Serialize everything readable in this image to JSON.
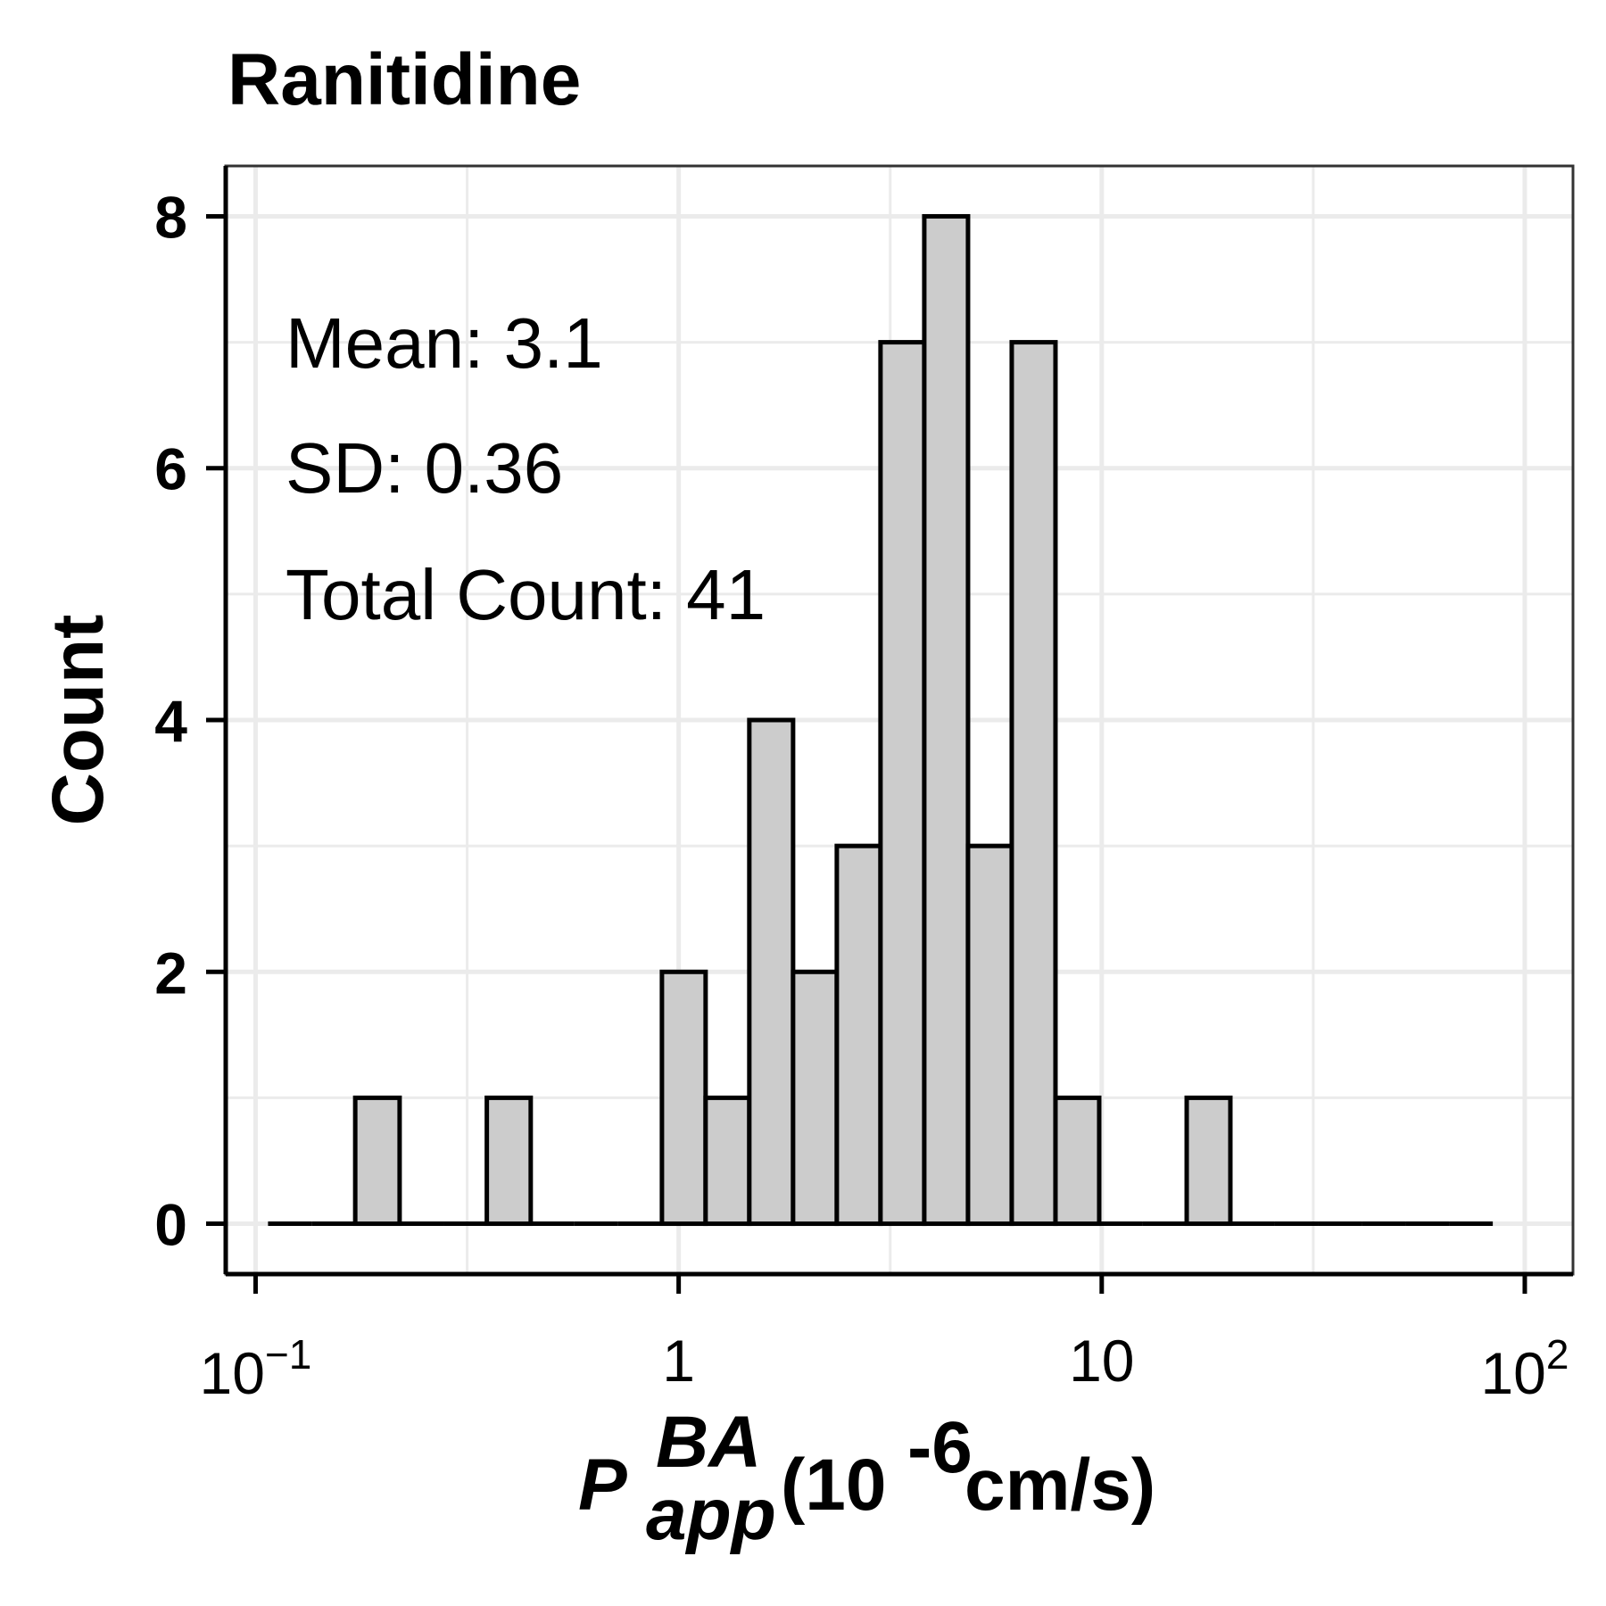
{
  "chart_data": {
    "type": "bar",
    "title": "Ranitidine",
    "xscale": "log10",
    "xlim": [
      0.085,
      130
    ],
    "ylim": [
      -0.4,
      8.4
    ],
    "grid": true,
    "bar_color": "#cccccc",
    "edge_color": "#000000",
    "x_ticks": [
      {
        "value": 0.1,
        "base": "10",
        "exp": "−1"
      },
      {
        "value": 1,
        "base": "1",
        "exp": ""
      },
      {
        "value": 10,
        "base": "10",
        "exp": ""
      },
      {
        "value": 100,
        "base": "10",
        "exp": "2"
      }
    ],
    "y_ticks": [
      0,
      2,
      4,
      6,
      8
    ],
    "xlabel": {
      "main": "P",
      "sup": "BA",
      "sub": "app",
      "unit_open": "(10",
      "unit_exp": "-6",
      "unit_close": " cm/s)"
    },
    "ylabel": "Count",
    "bins": [
      {
        "from": 0.107,
        "to": 0.136,
        "count": 0
      },
      {
        "from": 0.136,
        "to": 0.172,
        "count": 0
      },
      {
        "from": 0.172,
        "to": 0.219,
        "count": 1
      },
      {
        "from": 0.219,
        "to": 0.278,
        "count": 0
      },
      {
        "from": 0.278,
        "to": 0.352,
        "count": 0
      },
      {
        "from": 0.352,
        "to": 0.447,
        "count": 1
      },
      {
        "from": 0.447,
        "to": 0.567,
        "count": 0
      },
      {
        "from": 0.567,
        "to": 0.719,
        "count": 0
      },
      {
        "from": 0.719,
        "to": 0.913,
        "count": 0
      },
      {
        "from": 0.913,
        "to": 1.158,
        "count": 2
      },
      {
        "from": 1.158,
        "to": 1.469,
        "count": 1
      },
      {
        "from": 1.469,
        "to": 1.864,
        "count": 4
      },
      {
        "from": 1.864,
        "to": 2.365,
        "count": 2
      },
      {
        "from": 2.365,
        "to": 3.0,
        "count": 3
      },
      {
        "from": 3.0,
        "to": 3.807,
        "count": 7
      },
      {
        "from": 3.807,
        "to": 4.83,
        "count": 8
      },
      {
        "from": 4.83,
        "to": 6.128,
        "count": 3
      },
      {
        "from": 6.128,
        "to": 7.775,
        "count": 7
      },
      {
        "from": 7.775,
        "to": 9.864,
        "count": 1
      },
      {
        "from": 9.864,
        "to": 12.51,
        "count": 0
      },
      {
        "from": 12.51,
        "to": 15.88,
        "count": 0
      },
      {
        "from": 15.88,
        "to": 20.14,
        "count": 1
      },
      {
        "from": 20.14,
        "to": 25.56,
        "count": 0
      },
      {
        "from": 25.56,
        "to": 32.42,
        "count": 0
      },
      {
        "from": 32.42,
        "to": 41.14,
        "count": 0
      },
      {
        "from": 41.14,
        "to": 52.19,
        "count": 0
      },
      {
        "from": 52.19,
        "to": 66.22,
        "count": 0
      },
      {
        "from": 66.22,
        "to": 84.02,
        "count": 0
      }
    ],
    "annotations": [
      "Mean: 3.1",
      "SD: 0.36",
      "Total Count: 41"
    ]
  }
}
